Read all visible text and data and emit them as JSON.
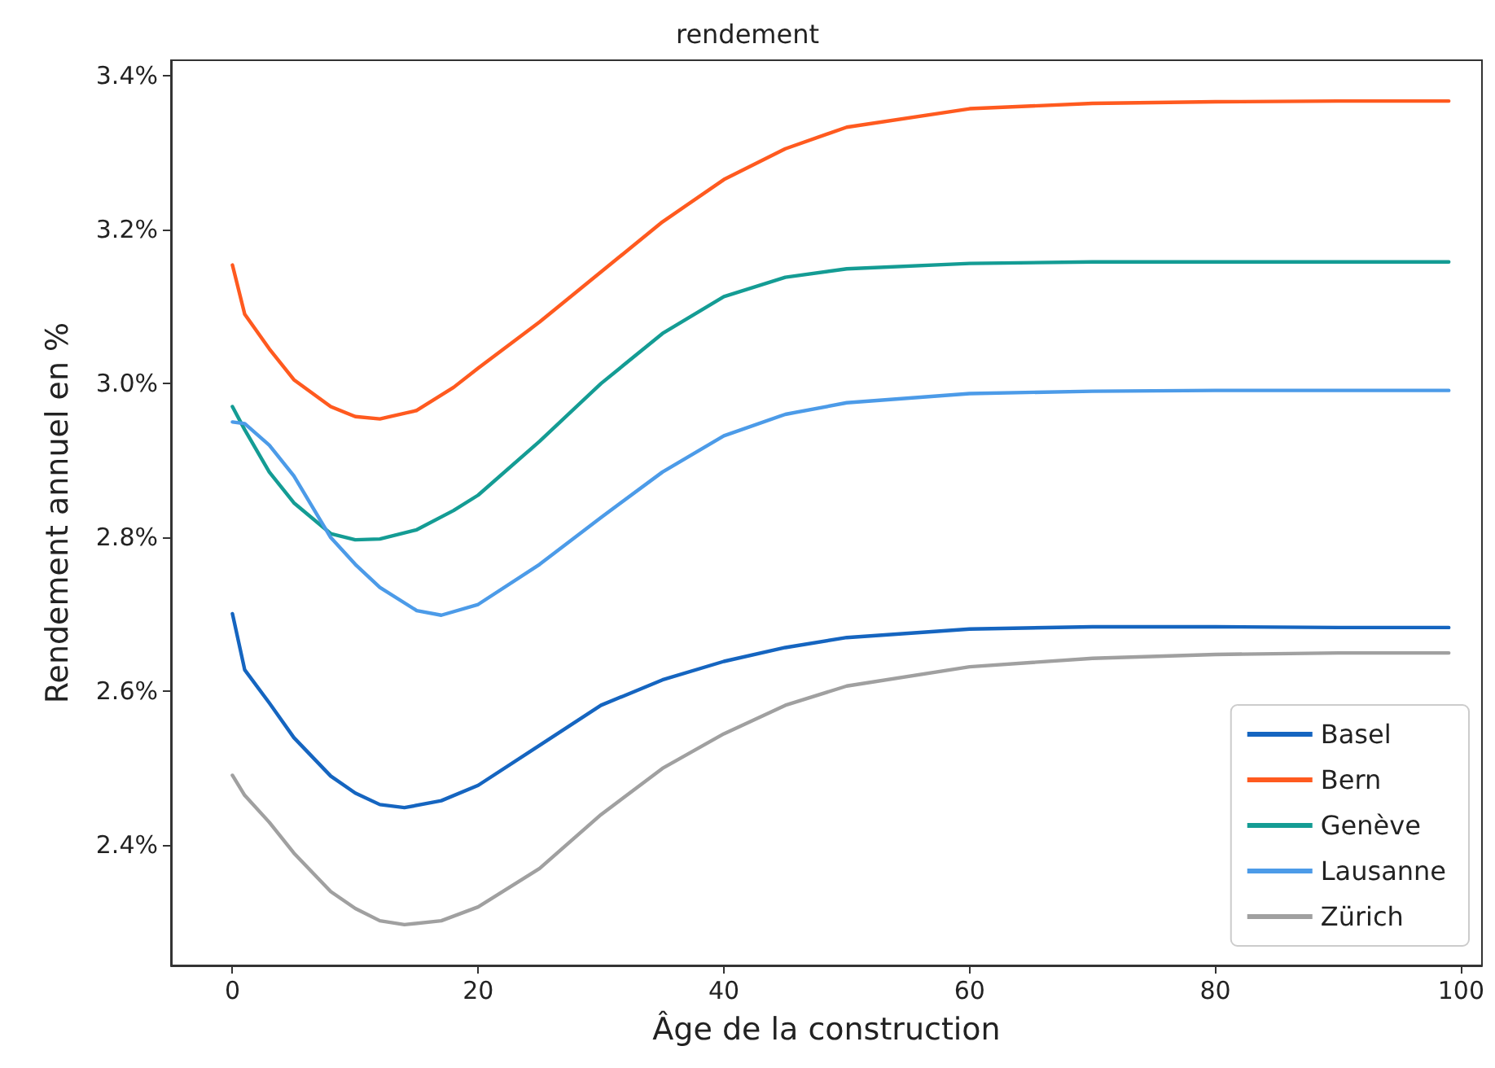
{
  "chart_data": {
    "type": "line",
    "title": "rendement",
    "xlabel": "Âge de la construction",
    "ylabel": "Rendement annuel en %",
    "xlim": [
      -5,
      101.7
    ],
    "xticks": [
      0,
      20,
      40,
      60,
      80,
      100
    ],
    "ylim": [
      2.244,
      3.42
    ],
    "yticks": [
      {
        "value": 2.4,
        "label": "2.4%"
      },
      {
        "value": 2.6,
        "label": "2.6%"
      },
      {
        "value": 2.8,
        "label": "2.8%"
      },
      {
        "value": 3.0,
        "label": "3.0%"
      },
      {
        "value": 3.2,
        "label": "3.2%"
      },
      {
        "value": 3.4,
        "label": "3.4%"
      }
    ],
    "grid": false,
    "legend": "bottom right",
    "marker": "none",
    "line_style": "solid",
    "series": [
      {
        "name": "Basel",
        "color": "#1565c0",
        "x": [
          0,
          1,
          3,
          5,
          8,
          10,
          12,
          14,
          17,
          20,
          25,
          30,
          35,
          40,
          45,
          50,
          60,
          70,
          80,
          90,
          99
        ],
        "values": [
          2.701,
          2.628,
          2.585,
          2.54,
          2.49,
          2.468,
          2.453,
          2.449,
          2.458,
          2.478,
          2.53,
          2.582,
          2.615,
          2.639,
          2.657,
          2.67,
          2.681,
          2.684,
          2.684,
          2.683,
          2.683
        ]
      },
      {
        "name": "Bern",
        "color": "#ff5a1f",
        "x": [
          0,
          1,
          3,
          5,
          8,
          10,
          12,
          15,
          18,
          20,
          25,
          30,
          35,
          40,
          45,
          50,
          60,
          70,
          80,
          90,
          99
        ],
        "values": [
          3.154,
          3.09,
          3.045,
          3.005,
          2.97,
          2.957,
          2.954,
          2.965,
          2.995,
          3.02,
          3.08,
          3.145,
          3.21,
          3.265,
          3.305,
          3.333,
          3.357,
          3.364,
          3.366,
          3.367,
          3.367
        ]
      },
      {
        "name": "Genève",
        "color": "#149c94",
        "x": [
          0,
          1,
          3,
          5,
          8,
          10,
          12,
          15,
          18,
          20,
          25,
          30,
          35,
          40,
          45,
          50,
          60,
          70,
          80,
          90,
          99
        ],
        "values": [
          2.97,
          2.94,
          2.885,
          2.845,
          2.805,
          2.797,
          2.798,
          2.81,
          2.835,
          2.855,
          2.925,
          3.0,
          3.065,
          3.113,
          3.138,
          3.149,
          3.156,
          3.158,
          3.158,
          3.158,
          3.158
        ]
      },
      {
        "name": "Lausanne",
        "color": "#4c9be8",
        "x": [
          0,
          1,
          3,
          5,
          8,
          10,
          12,
          15,
          17,
          20,
          25,
          30,
          35,
          40,
          45,
          50,
          60,
          70,
          80,
          90,
          99
        ],
        "values": [
          2.95,
          2.948,
          2.92,
          2.88,
          2.8,
          2.765,
          2.735,
          2.705,
          2.699,
          2.713,
          2.765,
          2.826,
          2.885,
          2.932,
          2.96,
          2.975,
          2.987,
          2.99,
          2.991,
          2.991,
          2.991
        ]
      },
      {
        "name": "Zürich",
        "color": "#a0a0a0",
        "x": [
          0,
          1,
          3,
          5,
          8,
          10,
          12,
          14,
          17,
          20,
          25,
          30,
          35,
          40,
          45,
          50,
          60,
          70,
          80,
          90,
          99
        ],
        "values": [
          2.491,
          2.465,
          2.43,
          2.39,
          2.34,
          2.318,
          2.302,
          2.297,
          2.302,
          2.32,
          2.37,
          2.44,
          2.5,
          2.545,
          2.582,
          2.607,
          2.632,
          2.643,
          2.648,
          2.65,
          2.65
        ]
      }
    ]
  }
}
